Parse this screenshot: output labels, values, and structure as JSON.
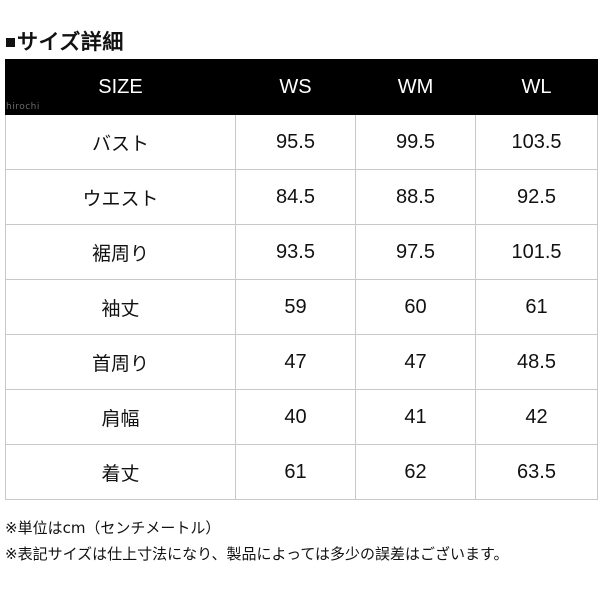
{
  "heading": {
    "mark": "■",
    "title": "サイズ詳細"
  },
  "watermark": "hirochi",
  "size_table": {
    "columns": [
      "SIZE",
      "WS",
      "WM",
      "WL"
    ],
    "rows": [
      {
        "label": "バスト",
        "values": [
          "95.5",
          "99.5",
          "103.5"
        ]
      },
      {
        "label": "ウエスト",
        "values": [
          "84.5",
          "88.5",
          "92.5"
        ]
      },
      {
        "label": "裾周り",
        "values": [
          "93.5",
          "97.5",
          "101.5"
        ]
      },
      {
        "label": "袖丈",
        "values": [
          "59",
          "60",
          "61"
        ]
      },
      {
        "label": "首周り",
        "values": [
          "47",
          "47",
          "48.5"
        ]
      },
      {
        "label": "肩幅",
        "values": [
          "40",
          "41",
          "42"
        ]
      },
      {
        "label": "着丈",
        "values": [
          "61",
          "62",
          "63.5"
        ]
      }
    ]
  },
  "notes": [
    "※単位はcm（センチメートル）",
    "※表記サイズは仕上寸法になり、製品によっては多少の誤差はございます。"
  ]
}
